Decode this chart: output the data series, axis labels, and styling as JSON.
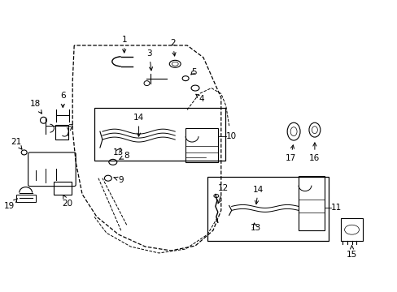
{
  "bg_color": "#ffffff",
  "lc": "#000000",
  "fig_width": 4.89,
  "fig_height": 3.6,
  "dpi": 100,
  "label_fs": 7.5
}
